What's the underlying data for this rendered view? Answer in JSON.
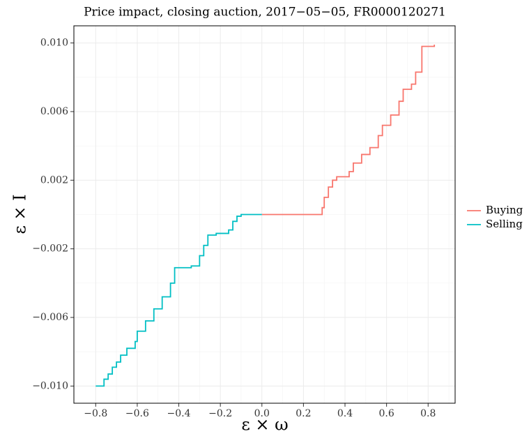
{
  "chart_data": {
    "type": "step",
    "title": "Price impact, closing auction, 2017−05−05, FR0000120271",
    "xlabel": "ε × ω",
    "ylabel": "ε × I",
    "xlim": [
      -0.905,
      0.93
    ],
    "ylim": [
      -0.011,
      0.011
    ],
    "xticks": [
      {
        "value": -0.8,
        "label": "−0.8"
      },
      {
        "value": -0.6,
        "label": "−0.6"
      },
      {
        "value": -0.4,
        "label": "−0.4"
      },
      {
        "value": -0.2,
        "label": "−0.2"
      },
      {
        "value": 0,
        "label": "0.0"
      },
      0.2,
      0.4,
      0.6,
      0.8
    ],
    "yticks": [
      {
        "value": -0.01,
        "label": "−0.010"
      },
      {
        "value": -0.006,
        "label": "−0.006"
      },
      {
        "value": -0.002,
        "label": "−0.002"
      },
      {
        "value": 0.002,
        "label": "0.002"
      },
      {
        "value": 0.006,
        "label": "0.006"
      },
      {
        "value": 0.01,
        "label": "0.010"
      }
    ],
    "minor_xticks": [
      -0.9,
      -0.7,
      -0.5,
      -0.3,
      -0.1,
      0.1,
      0.3,
      0.5,
      0.7,
      0.9
    ],
    "minor_yticks": [
      -0.008,
      -0.004,
      0,
      0.004,
      0.008
    ],
    "grid": true,
    "legend": "right",
    "series": [
      {
        "name": "Buying",
        "color": "#f8766d",
        "x": [
          0,
          0.28,
          0.29,
          0.3,
          0.32,
          0.34,
          0.36,
          0.42,
          0.44,
          0.48,
          0.52,
          0.56,
          0.58,
          0.62,
          0.66,
          0.68,
          0.72,
          0.74,
          0.77,
          0.83
        ],
        "values": [
          0,
          0,
          0.0004,
          0.001,
          0.0016,
          0.002,
          0.0022,
          0.0025,
          0.003,
          0.0035,
          0.0039,
          0.0046,
          0.0052,
          0.0058,
          0.0066,
          0.0073,
          0.0076,
          0.0083,
          0.0098,
          0.0099
        ]
      },
      {
        "name": "Selling",
        "color": "#00bfc4",
        "x": [
          -0.8,
          -0.76,
          -0.74,
          -0.72,
          -0.7,
          -0.68,
          -0.65,
          -0.61,
          -0.6,
          -0.56,
          -0.52,
          -0.48,
          -0.44,
          -0.42,
          -0.34,
          -0.3,
          -0.28,
          -0.26,
          -0.22,
          -0.16,
          -0.14,
          -0.12,
          -0.1,
          0
        ],
        "values": [
          -0.01,
          -0.0096,
          -0.0093,
          -0.0089,
          -0.0086,
          -0.0082,
          -0.0078,
          -0.0074,
          -0.0068,
          -0.0062,
          -0.0055,
          -0.0048,
          -0.004,
          -0.0031,
          -0.003,
          -0.0024,
          -0.0018,
          -0.0012,
          -0.0011,
          -0.0009,
          -0.0004,
          -0.0001,
          0,
          0
        ]
      }
    ]
  }
}
